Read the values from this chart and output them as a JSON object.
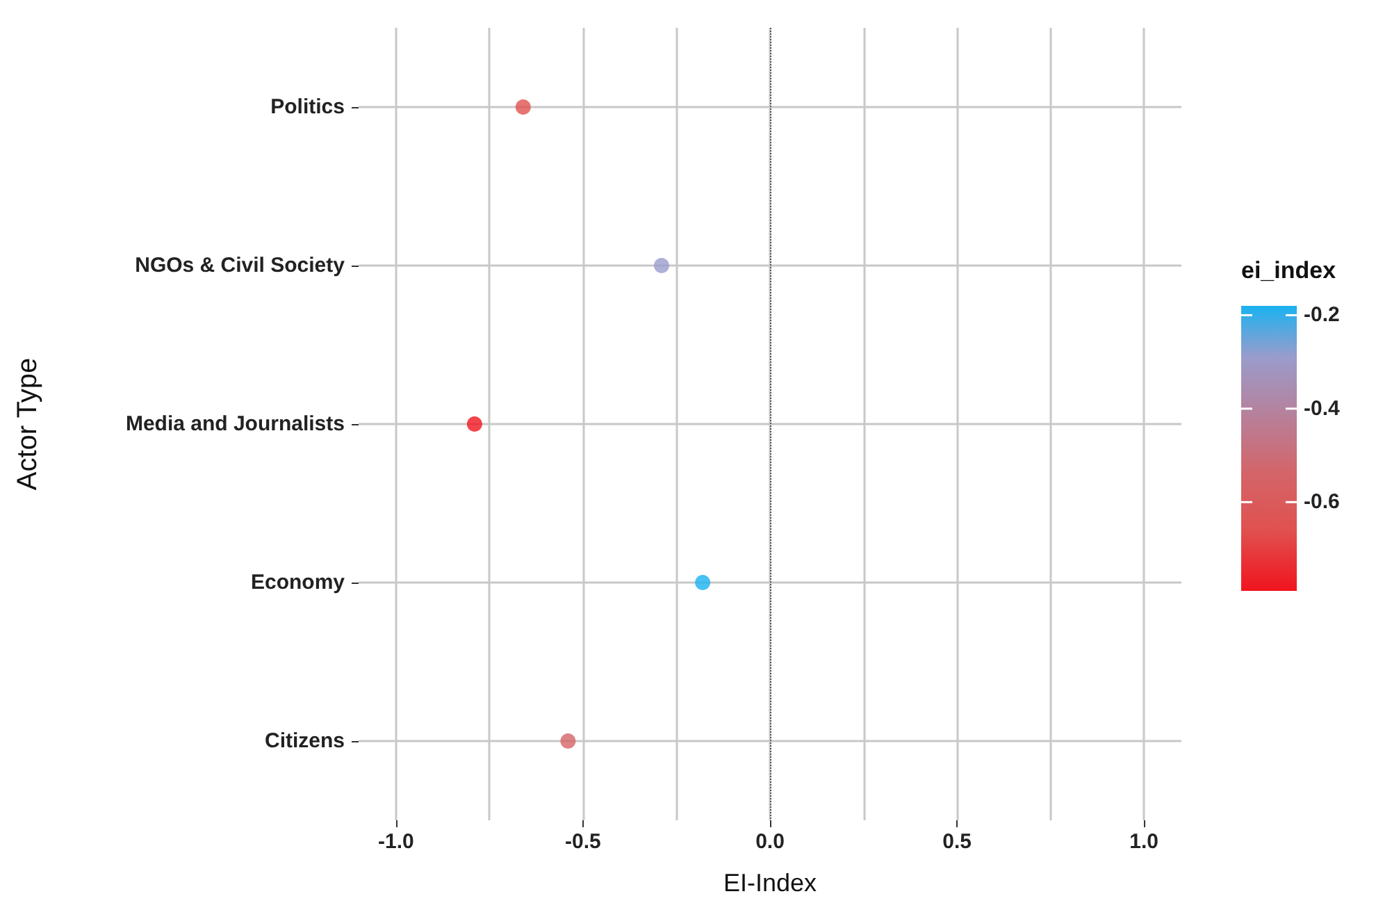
{
  "chart_data": {
    "type": "scatter",
    "xlabel": "EI-Index",
    "ylabel": "Actor Type",
    "clabel": "ei_index",
    "categories": [
      "Politics",
      "NGOs & Civil Society",
      "Media and Journalists",
      "Economy",
      "Citizens"
    ],
    "values": [
      -0.66,
      -0.29,
      -0.79,
      -0.18,
      -0.54
    ],
    "cvalues": [
      -0.66,
      -0.29,
      -0.79,
      -0.18,
      -0.54
    ],
    "colors": [
      "#e0514f",
      "#9a9ccc",
      "#f0141e",
      "#1ab2f0",
      "#d46468"
    ],
    "orientation": "horizontal",
    "xlim": [
      -1.1,
      1.1
    ],
    "xticks": [
      {
        "value": -1,
        "label": "-1.0"
      },
      {
        "value": -0.75,
        "label": null
      },
      {
        "value": -0.5,
        "label": "-0.5"
      },
      {
        "value": -0.25,
        "label": null
      },
      {
        "value": 0,
        "label": "0.0"
      },
      {
        "value": 0.25,
        "label": null
      },
      {
        "value": 0.5,
        "label": "0.5"
      },
      {
        "value": 0.75,
        "label": null
      },
      {
        "value": 1,
        "label": "1.0"
      }
    ],
    "clim": [
      -0.79,
      -0.18
    ],
    "cticks": [
      -0.6,
      -0.4,
      -0.2
    ],
    "ref_lines": [
      {
        "axis": "x",
        "value": 0,
        "label": null,
        "color": "#555555",
        "line_style": "dotted"
      }
    ],
    "grid": true,
    "marker": "circle"
  }
}
